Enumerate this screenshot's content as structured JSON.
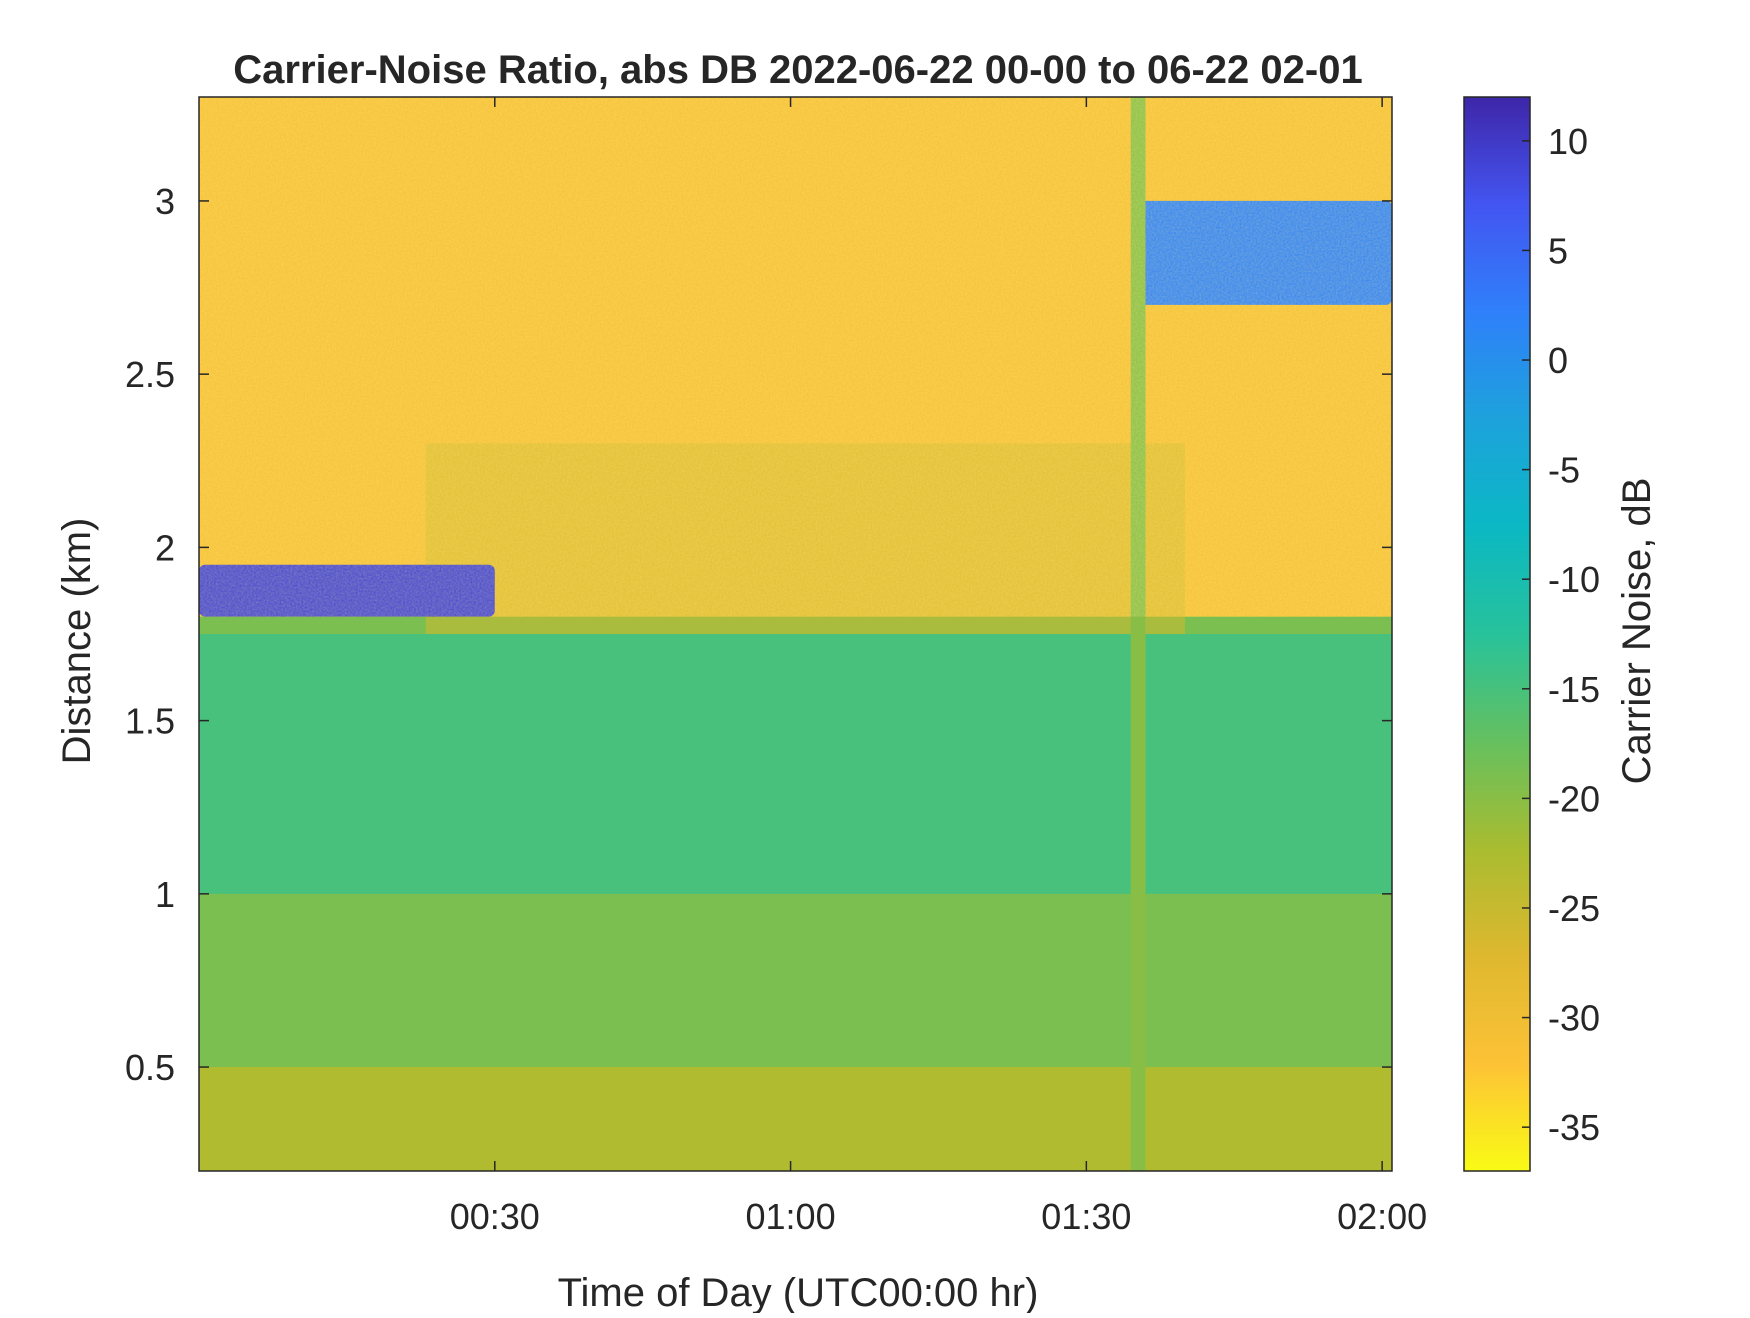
{
  "chart_data": {
    "type": "heatmap",
    "title": "Carrier-Noise Ratio, abs DB 2022-06-22 00-00 to 06-22 02-01",
    "xlabel": "Time of Day (UTC00:00 hr)",
    "ylabel": "Distance (km)",
    "x_ticks": [
      {
        "label": "00:30",
        "value": 30
      },
      {
        "label": "01:00",
        "value": 60
      },
      {
        "label": "01:30",
        "value": 90
      },
      {
        "label": "02:00",
        "value": 120
      }
    ],
    "xlim": [
      0,
      121
    ],
    "y_ticks": [
      {
        "label": "0.5",
        "value": 0.5
      },
      {
        "label": "1",
        "value": 1
      },
      {
        "label": "1.5",
        "value": 1.5
      },
      {
        "label": "2",
        "value": 2
      },
      {
        "label": "2.5",
        "value": 2.5
      },
      {
        "label": "3",
        "value": 3
      }
    ],
    "ylim": [
      0.2,
      3.3
    ],
    "colorbar": {
      "label": "Carrier Noise, dB",
      "range": [
        -37,
        12
      ],
      "ticks": [
        {
          "label": "10",
          "value": 10
        },
        {
          "label": "5",
          "value": 5
        },
        {
          "label": "0",
          "value": 0
        },
        {
          "label": "-5",
          "value": -5
        },
        {
          "label": "-10",
          "value": -10
        },
        {
          "label": "-15",
          "value": -15
        },
        {
          "label": "-20",
          "value": -20
        },
        {
          "label": "-25",
          "value": -25
        },
        {
          "label": "-30",
          "value": -30
        },
        {
          "label": "-35",
          "value": -35
        }
      ],
      "colormap": [
        "#3e26a8",
        "#4355f1",
        "#2f80fa",
        "#1da2dc",
        "#0bb8c4",
        "#27c29b",
        "#65c05f",
        "#a9bc30",
        "#deb82f",
        "#fdc236",
        "#f9fb15"
      ]
    },
    "grid": false,
    "regions": [
      {
        "name": "upper-noise",
        "x": [
          0,
          121
        ],
        "y": [
          1.8,
          3.3
        ],
        "value": -31
      },
      {
        "name": "transition",
        "x": [
          23,
          100
        ],
        "y": [
          1.75,
          2.3
        ],
        "value": -26
      },
      {
        "name": "boundary-layer",
        "x": [
          0,
          121
        ],
        "y": [
          1.0,
          1.75
        ],
        "value": -15
      },
      {
        "name": "lower-layer",
        "x": [
          0,
          121
        ],
        "y": [
          0.2,
          1.0
        ],
        "value": -19
      },
      {
        "name": "surface-layer",
        "x": [
          0,
          121
        ],
        "y": [
          0.2,
          0.5
        ],
        "value": -23
      },
      {
        "name": "cloud-base-early",
        "x": [
          0,
          30
        ],
        "y": [
          1.8,
          1.95
        ],
        "value": 9
      },
      {
        "name": "cloud-upper-late",
        "x": [
          95,
          121
        ],
        "y": [
          2.7,
          3.0
        ],
        "value": 2
      },
      {
        "name": "artifact-stripe",
        "x": [
          94.5,
          96
        ],
        "y": [
          0.2,
          3.3
        ],
        "value": -20
      }
    ]
  }
}
